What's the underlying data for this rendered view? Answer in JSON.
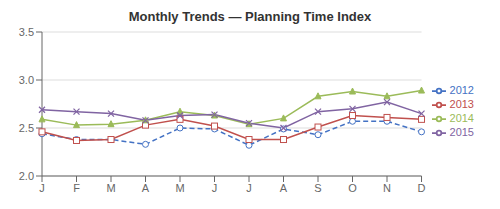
{
  "chart_data": {
    "type": "line",
    "title": "Monthly Trends — Planning Time Index",
    "categories": [
      "J",
      "F",
      "M",
      "A",
      "M",
      "J",
      "J",
      "A",
      "S",
      "O",
      "N",
      "D"
    ],
    "series": [
      {
        "name": "2012",
        "color": "#4472C4",
        "marker": "circle",
        "line_style": "dashed",
        "values": [
          2.44,
          2.38,
          2.38,
          2.33,
          2.5,
          2.49,
          2.32,
          2.49,
          2.43,
          2.57,
          2.57,
          2.46
        ]
      },
      {
        "name": "2013",
        "color": "#C0504D",
        "marker": "square",
        "line_style": "solid",
        "values": [
          2.46,
          2.37,
          2.38,
          2.53,
          2.59,
          2.52,
          2.38,
          2.38,
          2.51,
          2.63,
          2.61,
          2.59
        ]
      },
      {
        "name": "2014",
        "color": "#9BBB59",
        "marker": "triangle",
        "line_style": "solid",
        "values": [
          2.59,
          2.53,
          2.54,
          2.58,
          2.67,
          2.63,
          2.54,
          2.6,
          2.83,
          2.88,
          2.83,
          2.89
        ]
      },
      {
        "name": "2015",
        "color": "#8064A2",
        "marker": "x",
        "line_style": "solid",
        "values": [
          2.69,
          2.67,
          2.65,
          2.58,
          2.63,
          2.64,
          2.55,
          2.5,
          2.67,
          2.7,
          2.77,
          2.65
        ]
      }
    ],
    "ylim": [
      2.0,
      3.5
    ],
    "yticks": [
      {
        "value": 2.0,
        "label": "2.0"
      },
      {
        "value": 2.5,
        "label": "2.5"
      },
      {
        "value": 3.0,
        "label": "3.0"
      },
      {
        "value": 3.5,
        "label": "3.5"
      }
    ],
    "grid": true,
    "legend": "right"
  }
}
